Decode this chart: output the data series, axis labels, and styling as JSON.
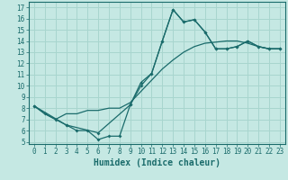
{
  "title": "",
  "xlabel": "Humidex (Indice chaleur)",
  "bg_color": "#c5e8e3",
  "line_color": "#1a6b6b",
  "grid_color": "#a8d5ce",
  "xlim": [
    -0.5,
    23.5
  ],
  "ylim": [
    4.8,
    17.5
  ],
  "xticks": [
    0,
    1,
    2,
    3,
    4,
    5,
    6,
    7,
    8,
    9,
    10,
    11,
    12,
    13,
    14,
    15,
    16,
    17,
    18,
    19,
    20,
    21,
    22,
    23
  ],
  "yticks": [
    5,
    6,
    7,
    8,
    9,
    10,
    11,
    12,
    13,
    14,
    15,
    16,
    17
  ],
  "curve1_x": [
    0,
    1,
    2,
    3,
    4,
    5,
    6,
    7,
    8,
    9,
    10,
    11,
    12,
    13,
    14,
    15,
    16,
    17,
    18,
    19,
    20,
    21,
    22,
    23
  ],
  "curve1_y": [
    8.2,
    7.5,
    7.0,
    6.5,
    6.0,
    6.0,
    5.2,
    5.5,
    5.5,
    8.3,
    10.3,
    11.1,
    14.0,
    16.8,
    15.7,
    15.9,
    14.8,
    13.3,
    13.3,
    13.5,
    14.0,
    13.5,
    13.3,
    13.3
  ],
  "curve2_x": [
    0,
    1,
    2,
    3,
    4,
    5,
    6,
    7,
    8,
    9,
    10,
    11,
    12,
    13,
    14,
    15,
    16,
    17,
    18,
    19,
    20,
    21,
    22,
    23
  ],
  "curve2_y": [
    8.2,
    7.5,
    7.0,
    7.5,
    7.5,
    7.8,
    7.8,
    8.0,
    8.0,
    8.5,
    9.5,
    10.5,
    11.5,
    12.3,
    13.0,
    13.5,
    13.8,
    13.9,
    14.0,
    14.0,
    13.8,
    13.5,
    13.3,
    13.3
  ],
  "curve3_x": [
    0,
    3,
    6,
    9,
    10,
    11,
    12,
    13,
    14,
    15,
    16,
    17,
    18,
    19,
    20,
    21,
    22,
    23
  ],
  "curve3_y": [
    8.2,
    6.5,
    5.8,
    8.3,
    10.0,
    11.1,
    14.0,
    16.8,
    15.7,
    15.9,
    14.8,
    13.3,
    13.3,
    13.5,
    14.0,
    13.5,
    13.3,
    13.3
  ],
  "tick_fontsize": 5.5,
  "xlabel_fontsize": 7.0
}
